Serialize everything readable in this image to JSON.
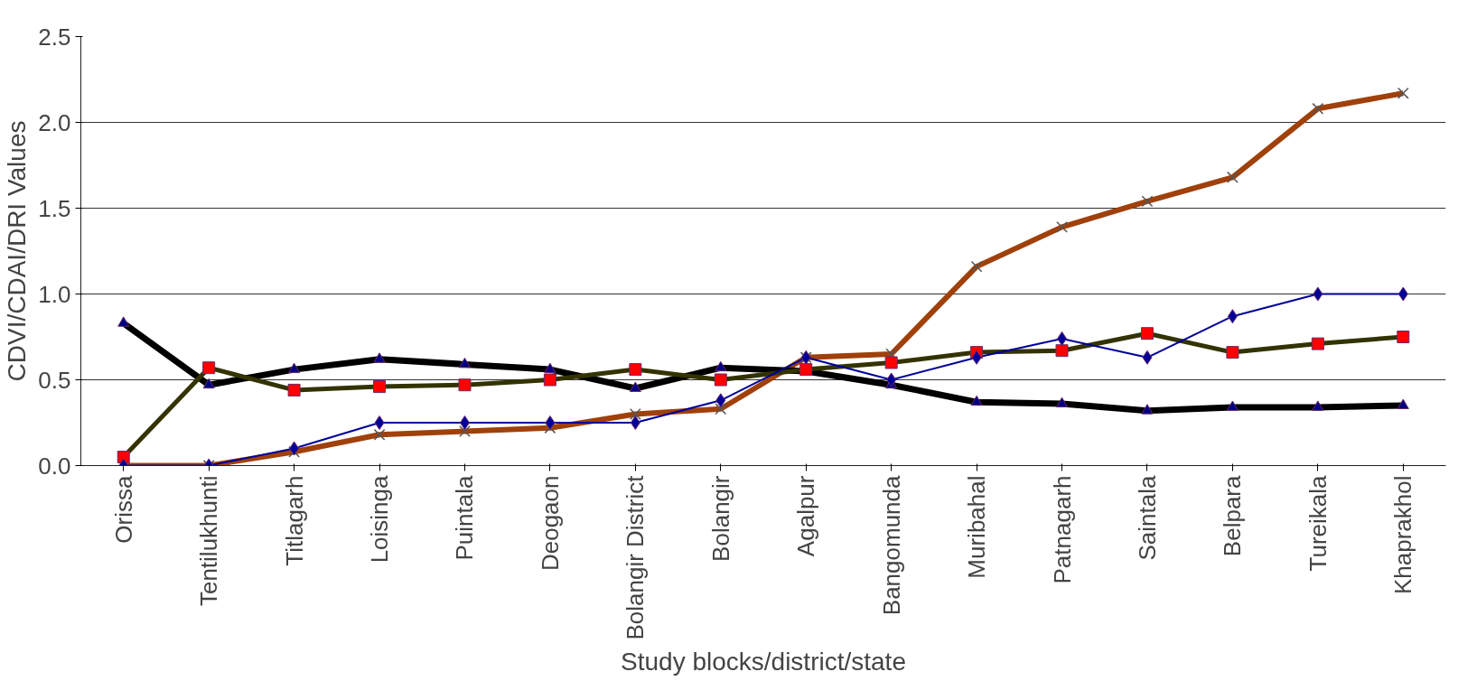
{
  "chart_data": {
    "type": "line",
    "xlabel": "Study blocks/district/state",
    "ylabel": "CDVI/CDAI/DRI Values",
    "categories": [
      "Orissa",
      "Tentilukhunti",
      "Titlagarh",
      "Loisinga",
      "Puintala",
      "Deogaon",
      "Bolangir District",
      "Bolangir",
      "Agalpur",
      "Bangomunda",
      "Muribahal",
      "Patnagarh",
      "Saintala",
      "Belpara",
      "Tureikala",
      "Khaprakhol"
    ],
    "series": [
      {
        "color": "#000099",
        "marker": "diamond",
        "values": [
          0,
          0,
          0.1,
          0.25,
          0.25,
          0.25,
          0.25,
          0.38,
          0.63,
          0.5,
          0.63,
          0.74,
          0.63,
          0.87,
          1.0,
          1.0
        ]
      },
      {
        "color": "#333300",
        "marker": "square",
        "values": [
          0.05,
          0.57,
          0.44,
          0.46,
          0.47,
          0.5,
          0.56,
          0.5,
          0.56,
          0.6,
          0.66,
          0.67,
          0.77,
          0.66,
          0.71,
          0.75
        ]
      },
      {
        "color": "#000000",
        "marker": "triangle",
        "values": [
          0.83,
          0.47,
          0.56,
          0.62,
          0.59,
          0.56,
          0.45,
          0.57,
          0.55,
          0.47,
          0.37,
          0.36,
          0.32,
          0.34,
          0.34,
          0.35
        ]
      },
      {
        "color": "#a0400a",
        "marker": "cross",
        "values": [
          0,
          0,
          0.08,
          0.18,
          0.2,
          0.22,
          0.3,
          0.33,
          0.63,
          0.65,
          1.16,
          1.39,
          1.54,
          1.68,
          2.08,
          2.17
        ]
      }
    ],
    "ylim": [
      0,
      2.5
    ],
    "yticks": [
      {
        "value": 0,
        "label": "0.0"
      },
      {
        "value": 0.5,
        "label": "0.5"
      },
      {
        "value": 1,
        "label": "1.0"
      },
      {
        "value": 1.5,
        "label": "1.5"
      },
      {
        "value": 2,
        "label": "2.0"
      },
      {
        "value": 2.5,
        "label": "2.5"
      }
    ],
    "grid": "y"
  }
}
